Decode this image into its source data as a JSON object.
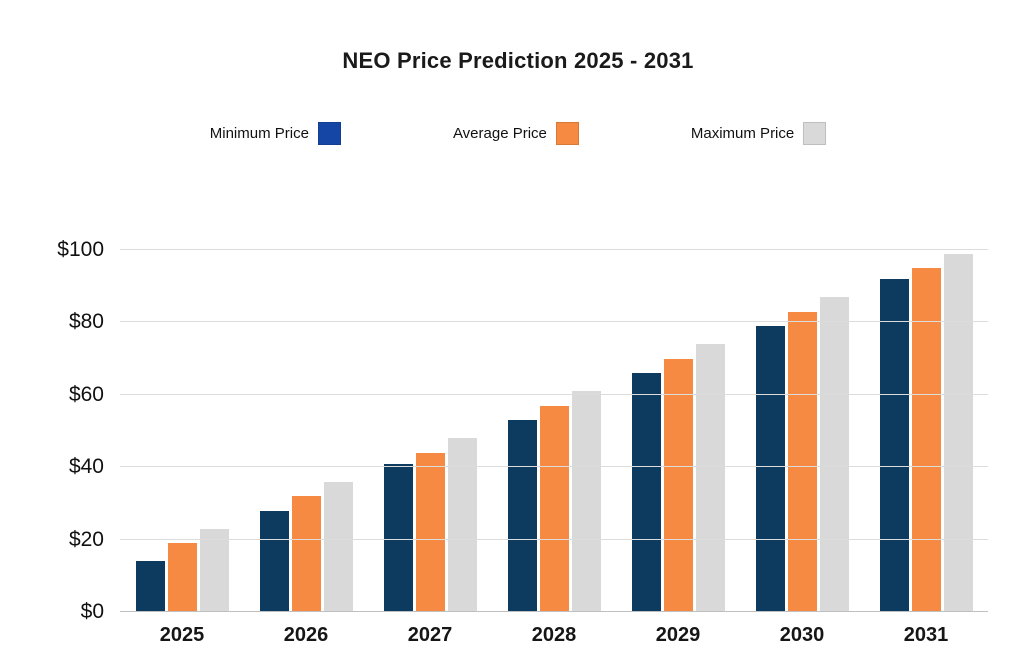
{
  "chart_data": {
    "type": "bar",
    "title": "NEO Price Prediction 2025 - 2031",
    "categories": [
      "2025",
      "2026",
      "2027",
      "2028",
      "2029",
      "2030",
      "2031"
    ],
    "series": [
      {
        "name": "Minimum Price",
        "color": "#0d3b60",
        "legend_color": "#1646a5",
        "values": [
          14,
          28,
          41,
          53,
          66,
          79,
          92
        ]
      },
      {
        "name": "Average Price",
        "color": "#f68a42",
        "legend_color": "#f68a42",
        "values": [
          19,
          32,
          44,
          57,
          70,
          83,
          95
        ]
      },
      {
        "name": "Maximum Price",
        "color": "#d9d9d9",
        "legend_color": "#d9d9d9",
        "values": [
          23,
          36,
          48,
          61,
          74,
          87,
          99
        ]
      }
    ],
    "ylim": [
      0,
      100
    ],
    "yticks": [
      0,
      20,
      40,
      60,
      80,
      100
    ],
    "ytick_labels": [
      "$0",
      "$20",
      "$40",
      "$60",
      "$80",
      "$100"
    ],
    "grid": true,
    "legend_position": "top",
    "background_color": "#ffffff"
  }
}
